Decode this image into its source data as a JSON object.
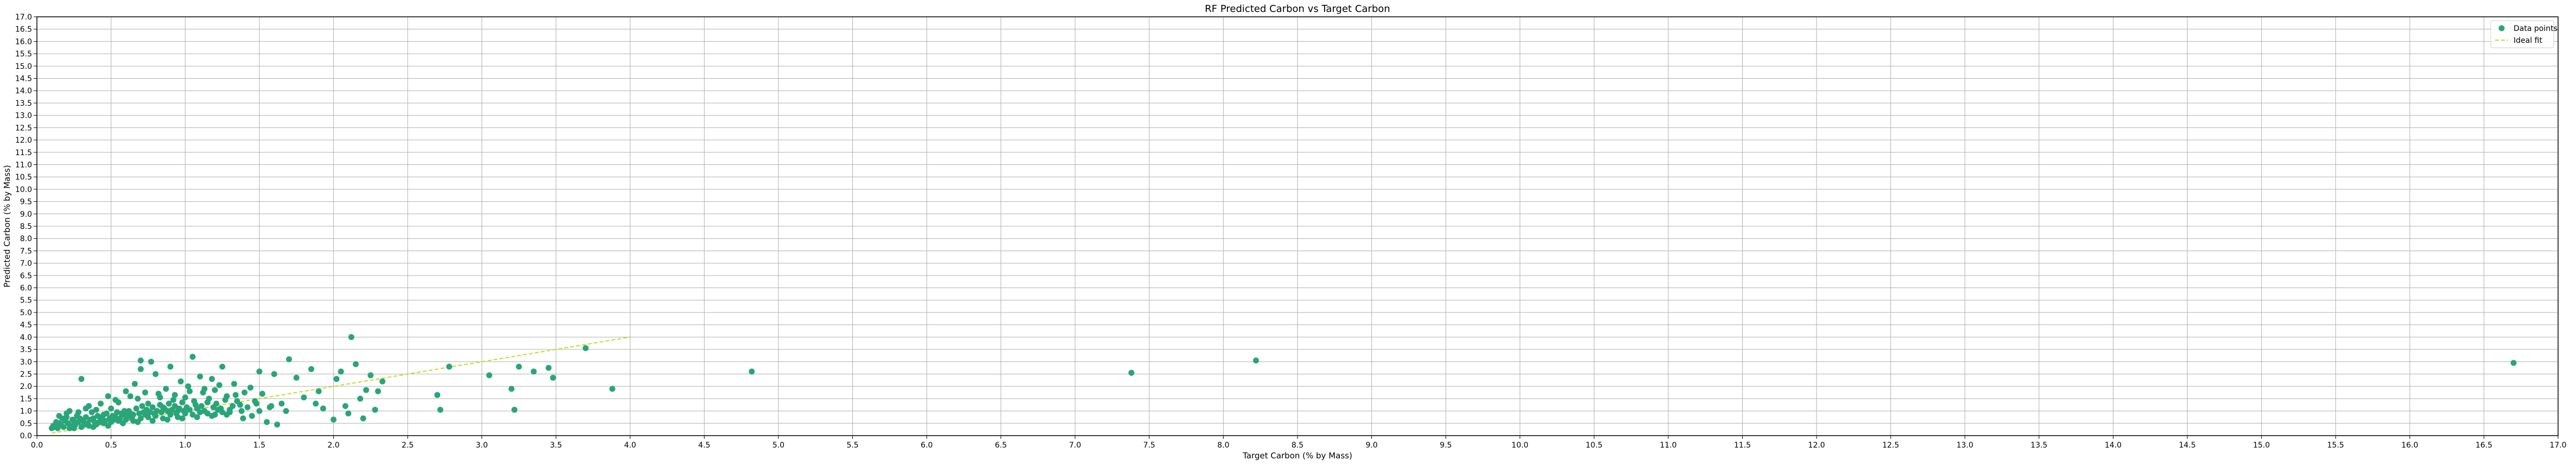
{
  "chart_data": {
    "type": "scatter",
    "title": "RF Predicted Carbon vs Target Carbon",
    "xlabel": "Target Carbon (% by Mass)",
    "ylabel": "Predicted Carbon (% by Mass)",
    "xlim": [
      0.0,
      17.0
    ],
    "ylim": [
      0.0,
      17.0
    ],
    "tick_step": 0.5,
    "grid": true,
    "legend_position": "top-right",
    "legend": [
      {
        "label": "Data points",
        "kind": "marker",
        "color": "#2aa57a"
      },
      {
        "label": "Ideal fit",
        "kind": "dashed-line",
        "color": "#c9d72a"
      }
    ],
    "series": [
      {
        "name": "Data points",
        "color": "#2aa57a",
        "points": [
          [
            0.12,
            0.35
          ],
          [
            0.15,
            0.5
          ],
          [
            0.17,
            0.7
          ],
          [
            0.2,
            0.9
          ],
          [
            0.22,
            1.0
          ],
          [
            0.25,
            0.6
          ],
          [
            0.27,
            0.8
          ],
          [
            0.3,
            2.3
          ],
          [
            0.32,
            0.45
          ],
          [
            0.35,
            1.2
          ],
          [
            0.37,
            0.95
          ],
          [
            0.4,
            1.05
          ],
          [
            0.42,
            0.55
          ],
          [
            0.45,
            0.85
          ],
          [
            0.48,
            1.6
          ],
          [
            0.5,
            1.1
          ],
          [
            0.52,
            0.65
          ],
          [
            0.55,
            1.35
          ],
          [
            0.57,
            0.9
          ],
          [
            0.6,
            1.8
          ],
          [
            0.62,
            1.0
          ],
          [
            0.64,
            0.7
          ],
          [
            0.66,
            2.1
          ],
          [
            0.68,
            1.5
          ],
          [
            0.7,
            3.05
          ],
          [
            0.7,
            2.7
          ],
          [
            0.72,
            0.95
          ],
          [
            0.75,
            1.3
          ],
          [
            0.77,
            3.0
          ],
          [
            0.8,
            2.5
          ],
          [
            0.82,
            1.7
          ],
          [
            0.85,
            1.15
          ],
          [
            0.87,
            1.9
          ],
          [
            0.9,
            2.8
          ],
          [
            0.92,
            1.45
          ],
          [
            0.95,
            1.0
          ],
          [
            0.97,
            2.2
          ],
          [
            1.0,
            1.55
          ],
          [
            1.02,
            2.0
          ],
          [
            1.05,
            3.2
          ],
          [
            1.07,
            1.25
          ],
          [
            1.1,
            2.4
          ],
          [
            1.12,
            1.75
          ],
          [
            1.15,
            1.35
          ],
          [
            1.18,
            2.3
          ],
          [
            1.2,
            1.85
          ],
          [
            1.22,
            1.05
          ],
          [
            1.25,
            2.8
          ],
          [
            1.28,
            1.6
          ],
          [
            1.3,
            0.95
          ],
          [
            1.33,
            2.1
          ],
          [
            1.35,
            1.4
          ],
          [
            1.38,
            1.0
          ],
          [
            1.4,
            1.75
          ],
          [
            1.45,
            0.8
          ],
          [
            1.48,
            1.3
          ],
          [
            1.5,
            2.6
          ],
          [
            1.52,
            1.7
          ],
          [
            1.55,
            0.55
          ],
          [
            1.57,
            1.15
          ],
          [
            1.6,
            2.5
          ],
          [
            1.62,
            0.45
          ],
          [
            1.65,
            1.3
          ],
          [
            1.68,
            1.0
          ],
          [
            1.7,
            3.1
          ],
          [
            1.75,
            2.35
          ],
          [
            1.8,
            1.55
          ],
          [
            1.85,
            2.7
          ],
          [
            1.88,
            1.3
          ],
          [
            1.9,
            1.8
          ],
          [
            1.93,
            1.1
          ],
          [
            2.0,
            0.65
          ],
          [
            2.02,
            2.3
          ],
          [
            2.05,
            2.6
          ],
          [
            2.08,
            1.2
          ],
          [
            2.1,
            0.9
          ],
          [
            2.12,
            4.0
          ],
          [
            2.15,
            2.9
          ],
          [
            2.18,
            1.5
          ],
          [
            2.2,
            0.7
          ],
          [
            2.22,
            1.85
          ],
          [
            2.25,
            2.45
          ],
          [
            2.28,
            1.05
          ],
          [
            2.3,
            1.8
          ],
          [
            2.33,
            2.2
          ],
          [
            2.7,
            1.65
          ],
          [
            2.72,
            1.05
          ],
          [
            2.78,
            2.8
          ],
          [
            3.05,
            2.45
          ],
          [
            3.2,
            1.9
          ],
          [
            3.22,
            1.05
          ],
          [
            3.25,
            2.8
          ],
          [
            3.35,
            2.6
          ],
          [
            3.45,
            2.75
          ],
          [
            3.48,
            2.35
          ],
          [
            3.7,
            3.55
          ],
          [
            3.88,
            1.9
          ],
          [
            4.82,
            2.6
          ],
          [
            7.38,
            2.55
          ],
          [
            8.22,
            3.05
          ],
          [
            16.7,
            2.95
          ],
          [
            0.1,
            0.3
          ],
          [
            0.11,
            0.4
          ],
          [
            0.13,
            0.55
          ],
          [
            0.14,
            0.3
          ],
          [
            0.16,
            0.45
          ],
          [
            0.18,
            0.35
          ],
          [
            0.19,
            0.6
          ],
          [
            0.21,
            0.5
          ],
          [
            0.23,
            0.4
          ],
          [
            0.24,
            0.65
          ],
          [
            0.26,
            0.45
          ],
          [
            0.28,
            0.55
          ],
          [
            0.29,
            0.7
          ],
          [
            0.31,
            0.6
          ],
          [
            0.33,
            0.75
          ],
          [
            0.34,
            0.5
          ],
          [
            0.36,
            0.65
          ],
          [
            0.38,
            0.7
          ],
          [
            0.39,
            0.55
          ],
          [
            0.41,
            0.8
          ],
          [
            0.43,
            0.65
          ],
          [
            0.44,
            0.75
          ],
          [
            0.46,
            0.6
          ],
          [
            0.47,
            0.9
          ],
          [
            0.49,
            0.7
          ],
          [
            0.51,
            0.8
          ],
          [
            0.53,
            0.75
          ],
          [
            0.54,
            0.95
          ],
          [
            0.56,
            0.7
          ],
          [
            0.58,
            0.85
          ],
          [
            0.59,
            1.0
          ],
          [
            0.61,
            0.8
          ],
          [
            0.63,
            0.9
          ],
          [
            0.65,
            0.85
          ],
          [
            0.67,
            1.1
          ],
          [
            0.69,
            0.9
          ],
          [
            0.71,
            1.2
          ],
          [
            0.73,
            0.85
          ],
          [
            0.74,
            1.05
          ],
          [
            0.76,
            0.95
          ],
          [
            0.78,
            1.15
          ],
          [
            0.79,
            0.9
          ],
          [
            0.81,
            1.0
          ],
          [
            0.83,
            1.25
          ],
          [
            0.84,
            0.95
          ],
          [
            0.86,
            1.1
          ],
          [
            0.88,
            1.0
          ],
          [
            0.89,
            1.3
          ],
          [
            0.91,
            1.05
          ],
          [
            0.93,
            1.2
          ],
          [
            0.94,
            0.9
          ],
          [
            0.96,
            1.1
          ],
          [
            0.98,
            1.35
          ],
          [
            0.99,
            1.0
          ],
          [
            1.01,
            1.15
          ],
          [
            1.03,
            1.05
          ],
          [
            1.06,
            1.4
          ],
          [
            1.08,
            1.1
          ],
          [
            1.11,
            1.2
          ],
          [
            1.13,
            1.0
          ],
          [
            1.16,
            1.5
          ],
          [
            1.19,
            1.15
          ],
          [
            1.21,
            1.3
          ],
          [
            1.24,
            1.1
          ],
          [
            1.27,
            1.45
          ],
          [
            1.32,
            1.2
          ],
          [
            1.37,
            1.25
          ],
          [
            1.42,
            1.15
          ],
          [
            1.47,
            1.4
          ],
          [
            1.58,
            1.2
          ],
          [
            0.2,
            0.75
          ],
          [
            0.25,
            0.3
          ],
          [
            0.3,
            0.35
          ],
          [
            0.35,
            0.4
          ],
          [
            0.4,
            0.45
          ],
          [
            0.45,
            0.5
          ],
          [
            0.5,
            0.55
          ],
          [
            0.55,
            0.6
          ],
          [
            0.6,
            0.65
          ],
          [
            0.65,
            0.6
          ],
          [
            0.7,
            0.7
          ],
          [
            0.75,
            0.75
          ],
          [
            0.8,
            0.8
          ],
          [
            0.85,
            0.7
          ],
          [
            0.9,
            0.85
          ],
          [
            0.95,
            0.75
          ],
          [
            1.0,
            0.9
          ],
          [
            1.05,
            0.85
          ],
          [
            1.1,
            0.95
          ],
          [
            1.15,
            0.9
          ],
          [
            1.2,
            0.85
          ],
          [
            1.25,
            0.95
          ],
          [
            1.3,
            1.05
          ],
          [
            0.15,
            0.8
          ],
          [
            0.22,
            0.3
          ],
          [
            0.28,
            0.95
          ],
          [
            0.33,
            1.1
          ],
          [
            0.38,
            0.35
          ],
          [
            0.43,
            1.3
          ],
          [
            0.48,
            0.4
          ],
          [
            0.53,
            1.45
          ],
          [
            0.58,
            0.5
          ],
          [
            0.63,
            1.6
          ],
          [
            0.68,
            0.55
          ],
          [
            0.73,
            1.75
          ],
          [
            0.78,
            0.6
          ],
          [
            0.83,
            1.55
          ],
          [
            0.88,
            0.65
          ],
          [
            0.93,
            1.65
          ],
          [
            0.98,
            0.7
          ],
          [
            1.03,
            1.8
          ],
          [
            1.08,
            0.75
          ],
          [
            1.13,
            1.9
          ],
          [
            1.18,
            0.8
          ],
          [
            1.23,
            2.05
          ],
          [
            1.28,
            0.85
          ],
          [
            1.34,
            1.65
          ],
          [
            1.39,
            0.7
          ],
          [
            1.44,
            1.95
          ],
          [
            1.5,
            1.0
          ]
        ]
      },
      {
        "name": "Ideal fit",
        "color": "#c9d72a",
        "line_style": "dashed",
        "points": [
          [
            0.1,
            0.1
          ],
          [
            4.0,
            4.0
          ]
        ]
      }
    ]
  }
}
